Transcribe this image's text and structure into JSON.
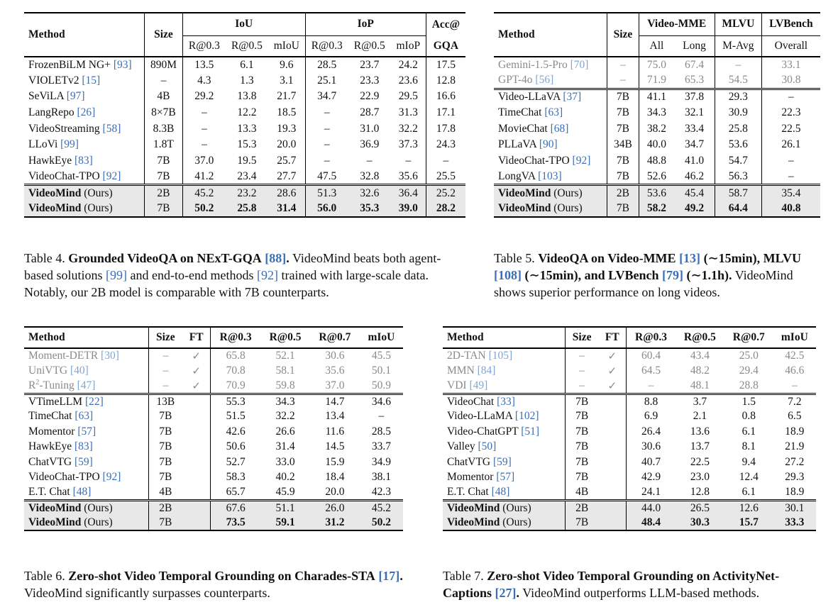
{
  "table4": {
    "headers": {
      "method": "Method",
      "size": "Size",
      "iou": "IoU",
      "iop": "IoP",
      "acc1": "Acc@",
      "acc2": "GQA",
      "iou_cols": [
        "R@0.3",
        "R@0.5",
        "mIoU"
      ],
      "iop_cols": [
        "R@0.3",
        "R@0.5",
        "mIoP"
      ]
    },
    "rows": [
      {
        "name": "FrozenBiLM NG+",
        "ref": "[93]",
        "size": "890M",
        "v": [
          "13.5",
          "6.1",
          "9.6",
          "28.5",
          "23.7",
          "24.2",
          "17.5"
        ]
      },
      {
        "name": "VIOLETv2",
        "ref": "[15]",
        "size": "–",
        "v": [
          "4.3",
          "1.3",
          "3.1",
          "25.1",
          "23.3",
          "23.6",
          "12.8"
        ]
      },
      {
        "name": "SeViLA",
        "ref": "[97]",
        "size": "4B",
        "v": [
          "29.2",
          "13.8",
          "21.7",
          "34.7",
          "22.9",
          "29.5",
          "16.6"
        ]
      },
      {
        "name": "LangRepo",
        "ref": "[26]",
        "size": "8×7B",
        "v": [
          "–",
          "12.2",
          "18.5",
          "–",
          "28.7",
          "31.3",
          "17.1"
        ]
      },
      {
        "name": "VideoStreaming",
        "ref": "[58]",
        "size": "8.3B",
        "v": [
          "–",
          "13.3",
          "19.3",
          "–",
          "31.0",
          "32.2",
          "17.8"
        ]
      },
      {
        "name": "LLoVi",
        "ref": "[99]",
        "size": "1.8T",
        "v": [
          "–",
          "15.3",
          "20.0",
          "–",
          "36.9",
          "37.3",
          "24.3"
        ]
      },
      {
        "name": "HawkEye",
        "ref": "[83]",
        "size": "7B",
        "v": [
          "37.0",
          "19.5",
          "25.7",
          "–",
          "–",
          "–",
          "–"
        ]
      },
      {
        "name": "VideoChat-TPO",
        "ref": "[92]",
        "size": "7B",
        "v": [
          "41.2",
          "23.4",
          "27.7",
          "47.5",
          "32.8",
          "35.6",
          "25.5"
        ]
      }
    ],
    "ours": [
      {
        "name": "VideoMind",
        "suffix": "(Ours)",
        "size": "2B",
        "v": [
          "45.2",
          "23.2",
          "28.6",
          "51.3",
          "32.6",
          "36.4",
          "25.2"
        ]
      },
      {
        "name": "VideoMind",
        "suffix": "(Ours)",
        "size": "7B",
        "v": [
          "50.2",
          "25.8",
          "31.4",
          "56.0",
          "35.3",
          "39.0",
          "28.2"
        ]
      }
    ],
    "caption": {
      "label": "Table 4.",
      "title": "Grounded VideoQA on NExT-GQA",
      "title_ref": "[88]",
      "title_end": ".",
      "text": [
        " VideoMind beats both agent-based solutions ",
        "[99]",
        " and end-to-end methods ",
        "[92]",
        " trained with large-scale data. Notably, our 2B model is comparable with 7B counterparts."
      ]
    }
  },
  "table5": {
    "headers": {
      "method": "Method",
      "size": "Size",
      "g1": "Video-MME",
      "g2": "MLVU",
      "g3": "LVBench",
      "cols": [
        "All",
        "Long",
        "M-Avg",
        "Overall"
      ]
    },
    "gray_rows": [
      {
        "name": "Gemini-1.5-Pro",
        "ref": "[70]",
        "size": "–",
        "v": [
          "75.0",
          "67.4",
          "–",
          "33.1"
        ]
      },
      {
        "name": "GPT-4o",
        "ref": "[56]",
        "size": "–",
        "v": [
          "71.9",
          "65.3",
          "54.5",
          "30.8"
        ]
      }
    ],
    "rows": [
      {
        "name": "Video-LLaVA",
        "ref": "[37]",
        "size": "7B",
        "v": [
          "41.1",
          "37.8",
          "29.3",
          "–"
        ]
      },
      {
        "name": "TimeChat",
        "ref": "[63]",
        "size": "7B",
        "v": [
          "34.3",
          "32.1",
          "30.9",
          "22.3"
        ]
      },
      {
        "name": "MovieChat",
        "ref": "[68]",
        "size": "7B",
        "v": [
          "38.2",
          "33.4",
          "25.8",
          "22.5"
        ]
      },
      {
        "name": "PLLaVA",
        "ref": "[90]",
        "size": "34B",
        "v": [
          "40.0",
          "34.7",
          "53.6",
          "26.1"
        ]
      },
      {
        "name": "VideoChat-TPO",
        "ref": "[92]",
        "size": "7B",
        "v": [
          "48.8",
          "41.0",
          "54.7",
          "–"
        ]
      },
      {
        "name": "LongVA",
        "ref": "[103]",
        "size": "7B",
        "v": [
          "52.6",
          "46.2",
          "56.3",
          "–"
        ]
      }
    ],
    "ours": [
      {
        "name": "VideoMind",
        "suffix": "(Ours)",
        "size": "2B",
        "v": [
          "53.6",
          "45.4",
          "58.7",
          "35.4"
        ]
      },
      {
        "name": "VideoMind",
        "suffix": "(Ours)",
        "size": "7B",
        "v": [
          "58.2",
          "49.2",
          "64.4",
          "40.8"
        ]
      }
    ],
    "caption": {
      "label": "Table 5.",
      "t1": "VideoQA on Video-MME ",
      "r1": "[13]",
      "t2": " (∼15min), MLVU ",
      "r2": "[108]",
      "t3": " (∼15min), and LVBench ",
      "r3": "[79]",
      "t4": " (∼1.1h).",
      "text": "VideoMind shows superior performance on long videos."
    }
  },
  "table6": {
    "headers": {
      "method": "Method",
      "size": "Size",
      "ft": "FT",
      "cols": [
        "R@0.3",
        "R@0.5",
        "R@0.7",
        "mIoU"
      ]
    },
    "gray_rows": [
      {
        "name": "Moment-DETR",
        "ref": "[30]",
        "size": "–",
        "ft": "✓",
        "v": [
          "65.8",
          "52.1",
          "30.6",
          "45.5"
        ]
      },
      {
        "name": "UniVTG",
        "ref": "[40]",
        "size": "–",
        "ft": "✓",
        "v": [
          "70.8",
          "58.1",
          "35.6",
          "50.1"
        ]
      },
      {
        "name": "R",
        "sup": "2",
        "name2": "-Tuning",
        "ref": "[47]",
        "size": "–",
        "ft": "✓",
        "v": [
          "70.9",
          "59.8",
          "37.0",
          "50.9"
        ]
      }
    ],
    "rows": [
      {
        "name": "VTimeLLM",
        "ref": "[22]",
        "size": "13B",
        "v": [
          "55.3",
          "34.3",
          "14.7",
          "34.6"
        ]
      },
      {
        "name": "TimeChat",
        "ref": "[63]",
        "size": "7B",
        "v": [
          "51.5",
          "32.2",
          "13.4",
          "–"
        ]
      },
      {
        "name": "Momentor",
        "ref": "[57]",
        "size": "7B",
        "v": [
          "42.6",
          "26.6",
          "11.6",
          "28.5"
        ]
      },
      {
        "name": "HawkEye",
        "ref": "[83]",
        "size": "7B",
        "v": [
          "50.6",
          "31.4",
          "14.5",
          "33.7"
        ]
      },
      {
        "name": "ChatVTG",
        "ref": "[59]",
        "size": "7B",
        "v": [
          "52.7",
          "33.0",
          "15.9",
          "34.9"
        ]
      },
      {
        "name": "VideoChat-TPO",
        "ref": "[92]",
        "size": "7B",
        "v": [
          "58.3",
          "40.2",
          "18.4",
          "38.1"
        ]
      },
      {
        "name": "E.T. Chat",
        "ref": "[48]",
        "size": "4B",
        "v": [
          "65.7",
          "45.9",
          "20.0",
          "42.3"
        ]
      }
    ],
    "ours": [
      {
        "name": "VideoMind",
        "suffix": "(Ours)",
        "size": "2B",
        "v": [
          "67.6",
          "51.1",
          "26.0",
          "45.2"
        ]
      },
      {
        "name": "VideoMind",
        "suffix": "(Ours)",
        "size": "7B",
        "v": [
          "73.5",
          "59.1",
          "31.2",
          "50.2"
        ]
      }
    ],
    "caption": {
      "label": "Table 6.",
      "title": "Zero-shot Video Temporal Grounding on Charades-STA",
      "ref": "[17]",
      "end": ".",
      "text": " VideoMind significantly surpasses counterparts."
    }
  },
  "table7": {
    "headers": {
      "method": "Method",
      "size": "Size",
      "ft": "FT",
      "cols": [
        "R@0.3",
        "R@0.5",
        "R@0.7",
        "mIoU"
      ]
    },
    "gray_rows": [
      {
        "name": "2D-TAN",
        "ref": "[105]",
        "size": "–",
        "ft": "✓",
        "v": [
          "60.4",
          "43.4",
          "25.0",
          "42.5"
        ]
      },
      {
        "name": "MMN",
        "ref": "[84]",
        "size": "–",
        "ft": "✓",
        "v": [
          "64.5",
          "48.2",
          "29.4",
          "46.6"
        ]
      },
      {
        "name": "VDI",
        "ref": "[49]",
        "size": "–",
        "ft": "✓",
        "v": [
          "–",
          "48.1",
          "28.8",
          "–"
        ]
      }
    ],
    "rows": [
      {
        "name": "VideoChat",
        "ref": "[33]",
        "size": "7B",
        "v": [
          "8.8",
          "3.7",
          "1.5",
          "7.2"
        ]
      },
      {
        "name": "Video-LLaMA",
        "ref": "[102]",
        "size": "7B",
        "v": [
          "6.9",
          "2.1",
          "0.8",
          "6.5"
        ]
      },
      {
        "name": "Video-ChatGPT",
        "ref": "[51]",
        "size": "7B",
        "v": [
          "26.4",
          "13.6",
          "6.1",
          "18.9"
        ]
      },
      {
        "name": "Valley",
        "ref": "[50]",
        "size": "7B",
        "v": [
          "30.6",
          "13.7",
          "8.1",
          "21.9"
        ]
      },
      {
        "name": "ChatVTG",
        "ref": "[59]",
        "size": "7B",
        "v": [
          "40.7",
          "22.5",
          "9.4",
          "27.2"
        ]
      },
      {
        "name": "Momentor",
        "ref": "[57]",
        "size": "7B",
        "v": [
          "42.9",
          "23.0",
          "12.4",
          "29.3"
        ]
      },
      {
        "name": "E.T. Chat",
        "ref": "[48]",
        "size": "4B",
        "v": [
          "24.1",
          "12.8",
          "6.1",
          "18.9"
        ]
      }
    ],
    "ours": [
      {
        "name": "VideoMind",
        "suffix": "(Ours)",
        "size": "2B",
        "v": [
          "44.0",
          "26.5",
          "12.6",
          "30.1"
        ]
      },
      {
        "name": "VideoMind",
        "suffix": "(Ours)",
        "size": "7B",
        "v": [
          "48.4",
          "30.3",
          "15.7",
          "33.3"
        ]
      }
    ],
    "caption": {
      "label": "Table 7.",
      "title": "Zero-shot Video Temporal Grounding on ActivityNet-Captions",
      "ref": "[27]",
      "end": ".",
      "text": " VideoMind outperforms LLM-based methods."
    }
  }
}
